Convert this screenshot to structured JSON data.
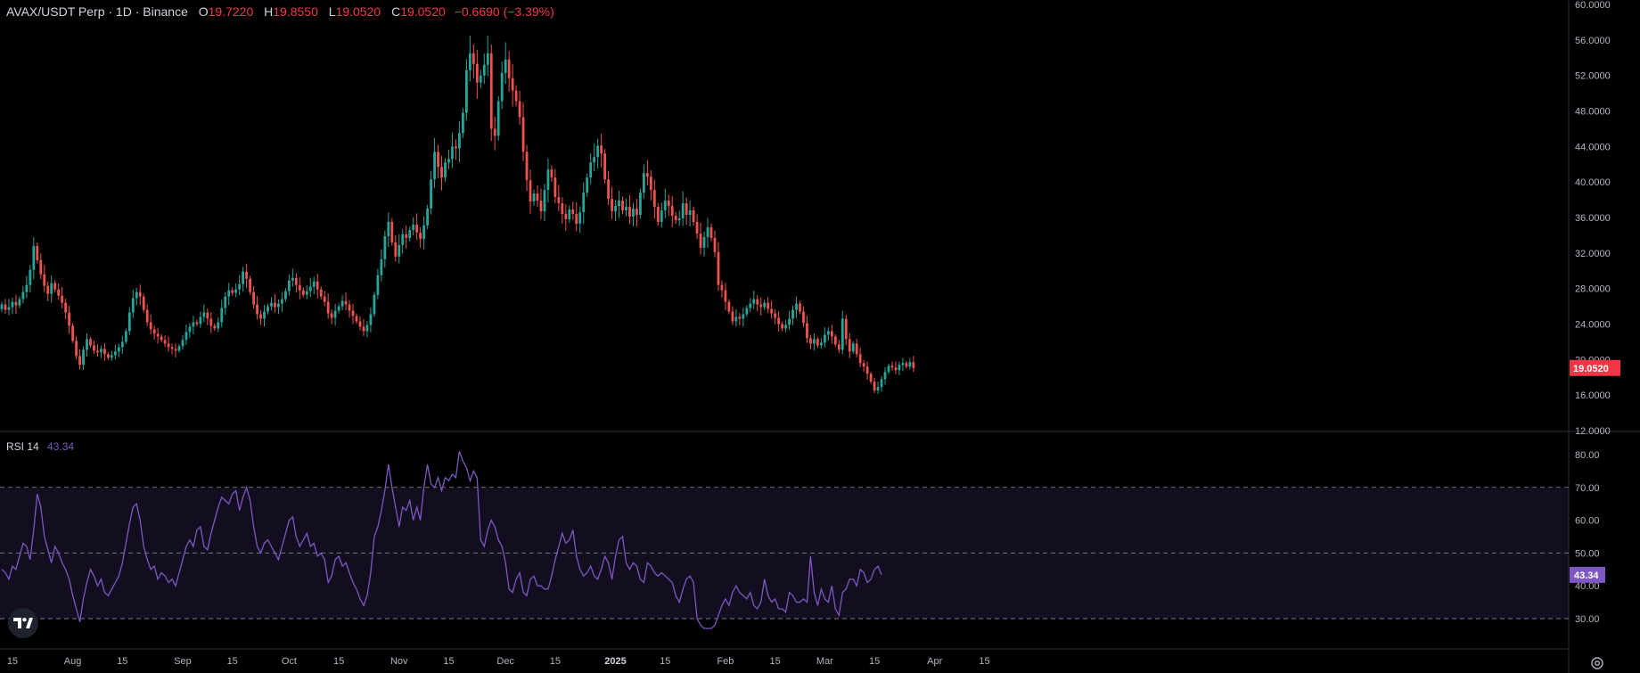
{
  "legend": {
    "symbol": "AVAX/USDT Perp · 1D · Binance",
    "open_label": "O",
    "open": "19.7220",
    "high_label": "H",
    "high": "19.8550",
    "low_label": "L",
    "low": "19.0520",
    "close_label": "C",
    "close": "19.0520",
    "change": "−0.6690 (−3.39%)"
  },
  "rsi_legend": {
    "label": "RSI 14",
    "value": "43.34"
  },
  "colors": {
    "up": "#26a69a",
    "down": "#ef5350",
    "rsi": "#7e57c2",
    "badge_price": "#f23645",
    "badge_rsi": "#7e57c2"
  },
  "icons": {
    "logo": "tradingview-logo-icon",
    "settings": "gear-icon"
  },
  "chart_data": [
    {
      "type": "candlestick",
      "title": "AVAX/USDT Perp · 1D · Binance",
      "ylim": [
        12,
        60
      ],
      "y_ticks": [
        "60.0000",
        "56.0000",
        "52.0000",
        "48.0000",
        "44.0000",
        "40.0000",
        "36.0000",
        "32.0000",
        "28.0000",
        "24.0000",
        "20.0000",
        "16.0000",
        "12.0000"
      ],
      "x_ticks": [
        "15",
        "Aug",
        "15",
        "Sep",
        "15",
        "Oct",
        "15",
        "Nov",
        "15",
        "Dec",
        "15",
        "2025",
        "15",
        "Feb",
        "15",
        "Mar",
        "15",
        "Apr",
        "15"
      ],
      "x_tick_dates": [
        "2024-07-15",
        "2024-08-01",
        "2024-08-15",
        "2024-09-01",
        "2024-09-15",
        "2024-10-01",
        "2024-10-15",
        "2024-11-01",
        "2024-11-15",
        "2024-12-01",
        "2024-12-15",
        "2025-01-01",
        "2025-01-15",
        "2025-02-01",
        "2025-02-15",
        "2025-03-01",
        "2025-03-15",
        "2025-04-01",
        "2025-04-15"
      ],
      "start_date": "2024-07-12",
      "last_price": "19.0520",
      "closes": [
        26.2,
        25.6,
        25.9,
        26.5,
        26.1,
        26.8,
        27.6,
        28.4,
        30.1,
        32.8,
        31.2,
        29.6,
        28.3,
        27.4,
        28.6,
        27.9,
        27.2,
        26.4,
        25.3,
        23.8,
        22.1,
        20.4,
        19.4,
        21.1,
        22.3,
        21.6,
        21.0,
        20.8,
        21.2,
        20.6,
        20.2,
        20.5,
        20.9,
        21.4,
        22.0,
        23.2,
        25.3,
        26.9,
        27.6,
        27.1,
        25.6,
        24.2,
        23.4,
        22.9,
        22.6,
        22.2,
        21.8,
        21.4,
        21.2,
        21.0,
        21.5,
        22.2,
        23.1,
        23.7,
        24.2,
        24.0,
        24.8,
        25.3,
        24.6,
        23.8,
        23.5,
        24.2,
        25.8,
        27.1,
        27.8,
        27.5,
        27.9,
        28.5,
        29.9,
        29.1,
        27.6,
        26.2,
        25.1,
        24.6,
        25.4,
        26.0,
        26.4,
        25.9,
        26.3,
        26.8,
        27.7,
        28.9,
        29.2,
        28.4,
        27.8,
        27.3,
        27.7,
        28.2,
        28.8,
        27.9,
        27.1,
        26.5,
        25.2,
        24.7,
        25.5,
        26.0,
        26.6,
        26.2,
        25.5,
        24.9,
        24.3,
        23.7,
        23.2,
        23.9,
        25.1,
        27.3,
        29.5,
        31.3,
        33.9,
        35.5,
        33.2,
        31.6,
        32.9,
        34.1,
        33.7,
        34.6,
        35.2,
        34.3,
        33.6,
        35.1,
        37.0,
        40.3,
        43.4,
        41.7,
        40.5,
        42.2,
        42.6,
        44.0,
        43.8,
        45.5,
        47.8,
        52.6,
        54.5,
        53.3,
        51.2,
        52.0,
        53.2,
        54.5,
        46.0,
        45.2,
        49.1,
        52.3,
        53.8,
        51.7,
        50.3,
        49.1,
        47.3,
        43.4,
        40.2,
        37.8,
        38.7,
        37.9,
        36.7,
        39.1,
        41.4,
        40.5,
        38.3,
        37.6,
        36.4,
        35.8,
        36.9,
        36.4,
        35.3,
        36.6,
        38.8,
        40.5,
        42.2,
        42.8,
        44.1,
        43.2,
        40.3,
        38.1,
        36.7,
        37.3,
        37.9,
        36.8,
        37.2,
        36.1,
        37.0,
        36.3,
        38.8,
        41.0,
        40.6,
        39.1,
        37.2,
        35.5,
        36.8,
        37.9,
        37.3,
        36.2,
        35.7,
        35.9,
        37.6,
        36.3,
        36.8,
        35.5,
        34.2,
        32.6,
        33.8,
        34.9,
        33.7,
        32.1,
        28.4,
        27.8,
        26.5,
        25.4,
        24.3,
        24.8,
        24.6,
        25.1,
        25.8,
        26.3,
        26.8,
        26.2,
        25.9,
        26.4,
        25.7,
        25.2,
        24.7,
        24.0,
        23.5,
        23.9,
        24.6,
        25.6,
        26.3,
        25.4,
        24.1,
        22.4,
        21.8,
        22.3,
        21.6,
        21.9,
        22.8,
        23.2,
        22.6,
        21.7,
        21.1,
        24.6,
        22.3,
        20.9,
        21.8,
        20.6,
        19.6,
        19.2,
        18.4,
        17.5,
        16.5,
        16.9,
        17.8,
        18.6,
        19.3,
        19.1,
        18.8,
        19.4,
        19.6,
        19.2,
        19.7,
        19.05
      ],
      "rsi": {
        "name": "RSI 14",
        "ylim": [
          20,
          85
        ],
        "y_ticks": [
          "80.00",
          "70.00",
          "60.00",
          "50.00",
          "40.00",
          "30.00"
        ],
        "bands": [
          70,
          50,
          30
        ],
        "last": "43.34",
        "values": [
          45,
          44,
          42,
          46,
          45,
          49,
          53,
          52,
          48,
          57,
          68,
          64,
          55,
          51,
          47,
          52,
          50,
          47,
          45,
          42,
          37,
          33,
          29,
          36,
          41,
          45,
          43,
          40,
          42,
          38,
          37,
          39,
          41,
          43,
          47,
          53,
          59,
          64,
          65,
          60,
          52,
          48,
          45,
          46,
          42,
          44,
          43,
          41,
          42,
          40,
          44,
          48,
          52,
          54,
          52,
          57,
          58,
          52,
          51,
          56,
          60,
          64,
          67,
          66,
          65,
          68,
          69,
          63,
          67,
          70,
          66,
          58,
          52,
          50,
          53,
          54,
          52,
          50,
          48,
          52,
          56,
          60,
          61,
          55,
          52,
          54,
          56,
          52,
          53,
          49,
          50,
          48,
          41,
          43,
          48,
          49,
          46,
          47,
          44,
          41,
          39,
          36,
          34,
          37,
          44,
          55,
          58,
          63,
          69,
          77,
          70,
          64,
          58,
          64,
          63,
          66,
          60,
          64,
          60,
          70,
          77,
          71,
          70,
          73,
          69,
          73,
          72,
          74,
          73,
          81,
          78,
          76,
          72,
          75,
          73,
          54,
          52,
          57,
          60,
          58,
          54,
          52,
          47,
          39,
          38,
          42,
          44,
          38,
          37,
          42,
          43,
          40,
          40,
          39,
          39,
          43,
          48,
          52,
          56,
          53,
          54,
          57,
          49,
          45,
          43,
          44,
          46,
          43,
          42,
          45,
          49,
          47,
          42,
          49,
          54,
          55,
          47,
          45,
          47,
          46,
          42,
          41,
          47,
          46,
          44,
          43,
          44,
          43,
          42,
          41,
          37,
          35,
          39,
          42,
          43,
          41,
          30,
          28,
          27,
          27,
          27,
          28,
          31,
          34,
          36,
          34,
          38,
          40,
          38,
          37,
          36,
          38,
          34,
          33,
          35,
          42,
          37,
          35,
          36,
          33,
          33,
          32,
          38,
          37,
          35,
          35,
          36,
          35,
          49,
          38,
          34,
          39,
          36,
          35,
          40,
          33,
          31,
          38,
          39,
          42,
          42,
          40,
          45,
          44,
          41,
          42,
          45,
          46,
          43.34
        ]
      }
    }
  ]
}
